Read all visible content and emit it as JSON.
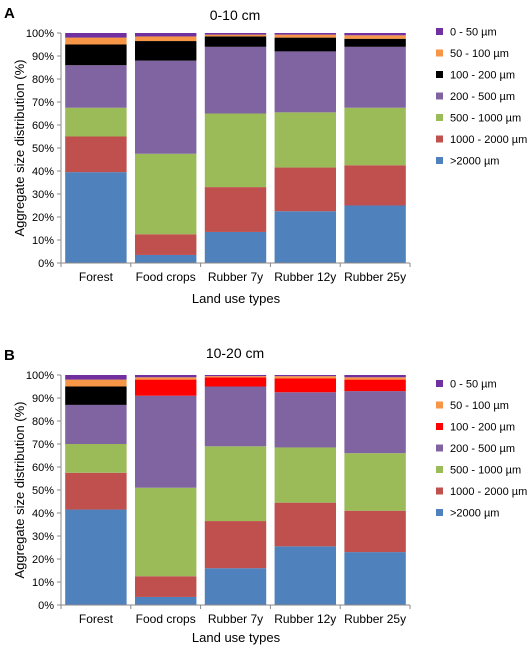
{
  "chart_data": [
    {
      "type": "bar",
      "stacked": true,
      "panel": "A",
      "title": "0-10 cm",
      "xlabel": "Land use types",
      "ylabel": "Aggregate size distribution (%)",
      "ylim": [
        0,
        100
      ],
      "yticks": [
        "0%",
        "10%",
        "20%",
        "30%",
        "40%",
        "50%",
        "60%",
        "70%",
        "80%",
        "90%",
        "100%"
      ],
      "grid": false,
      "legend_position": "right",
      "categories": [
        "Forest",
        "Food crops",
        "Rubber 7y",
        "Rubber 12y",
        "Rubber 25y"
      ],
      "series": [
        {
          "name": ">2000 µm",
          "color": "#4f81bd",
          "values": [
            39.5,
            3.5,
            13.5,
            22.5,
            25
          ]
        },
        {
          "name": "1000 - 2000 µm",
          "color": "#c0504d",
          "values": [
            15.5,
            9,
            19.5,
            19,
            17.5
          ]
        },
        {
          "name": "500 - 1000 µm",
          "color": "#9bbb59",
          "values": [
            12.5,
            35,
            32,
            24,
            25
          ]
        },
        {
          "name": "200 - 500 µm",
          "color": "#8064a2",
          "values": [
            18.5,
            40.5,
            29,
            26.5,
            26.5
          ]
        },
        {
          "name": "100 - 200 µm",
          "color": "#000000",
          "values": [
            9,
            8.5,
            4.5,
            6,
            3.5
          ]
        },
        {
          "name": "50 - 100 µm",
          "color": "#f79646",
          "values": [
            3,
            2,
            0.8,
            1.3,
            1.5
          ]
        },
        {
          "name": "0 - 50 µm",
          "color": "#7030a0",
          "values": [
            2,
            1.5,
            0.7,
            0.7,
            1
          ]
        }
      ]
    },
    {
      "type": "bar",
      "stacked": true,
      "panel": "B",
      "title": "10-20 cm",
      "xlabel": "Land use types",
      "ylabel": "Aggregate size distribution (%)",
      "ylim": [
        0,
        100
      ],
      "yticks": [
        "0%",
        "10%",
        "20%",
        "30%",
        "40%",
        "50%",
        "60%",
        "70%",
        "80%",
        "90%",
        "100%"
      ],
      "grid": false,
      "legend_position": "right",
      "categories": [
        "Forest",
        "Food crops",
        "Rubber 7y",
        "Rubber 12y",
        "Rubber 25y"
      ],
      "series": [
        {
          "name": ">2000 µm",
          "color": "#4f81bd",
          "values": [
            41.5,
            3.5,
            16,
            25.5,
            23
          ]
        },
        {
          "name": "1000 - 2000 µm",
          "color": "#c0504d",
          "values": [
            16,
            9,
            20.5,
            19,
            18
          ]
        },
        {
          "name": "500 - 1000 µm",
          "color": "#9bbb59",
          "values": [
            12.5,
            38.5,
            32.5,
            24,
            25
          ]
        },
        {
          "name": "200 - 500 µm",
          "color": "#8064a2",
          "values": [
            17,
            40,
            26,
            24,
            27
          ]
        },
        {
          "name": "100 - 200 µm",
          "color": "#000000",
          "values": [
            8,
            0,
            0,
            0,
            0
          ]
        },
        {
          "name": "100 - 200 µm",
          "color": "#ff0000",
          "values": [
            0,
            7,
            4,
            6,
            5
          ]
        },
        {
          "name": "50 - 100 µm",
          "color": "#f79646",
          "values": [
            3,
            1,
            0.5,
            1,
            1
          ]
        },
        {
          "name": "0 - 50 µm",
          "color": "#7030a0",
          "values": [
            2,
            1,
            0.5,
            0.5,
            1
          ]
        }
      ],
      "legend": [
        {
          "name": "0 - 50 µm",
          "color": "#7030a0"
        },
        {
          "name": "50 - 100 µm",
          "color": "#f79646"
        },
        {
          "name": "100 - 200 µm",
          "color": "#ff0000"
        },
        {
          "name": "200 - 500 µm",
          "color": "#8064a2"
        },
        {
          "name": "500 - 1000 µm",
          "color": "#9bbb59"
        },
        {
          "name": "1000 - 2000 µm",
          "color": "#c0504d"
        },
        {
          "name": ">2000 µm",
          "color": "#4f81bd"
        }
      ]
    }
  ]
}
